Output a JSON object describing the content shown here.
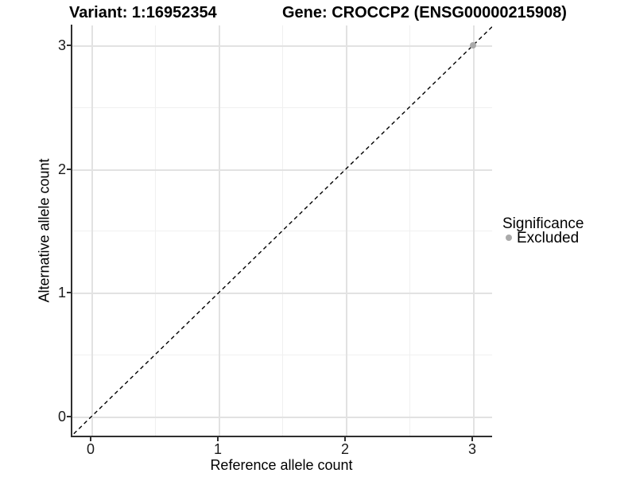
{
  "titles": {
    "variant": "Variant: 1:16952354",
    "gene": "Gene: CROCCP2 (ENSG00000215908)"
  },
  "chart_data": {
    "type": "scatter",
    "title": "Variant: 1:16952354 — Gene: CROCCP2 (ENSG00000215908)",
    "xlabel": "Reference allele count",
    "ylabel": "Alternative allele count",
    "xlim": [
      -0.16,
      3.16
    ],
    "ylim": [
      -0.16,
      3.16
    ],
    "x_ticks": [
      0,
      1,
      2,
      3
    ],
    "y_ticks": [
      0,
      1,
      2,
      3
    ],
    "x_tick_labels": [
      "0",
      "1",
      "2",
      "3"
    ],
    "y_tick_labels": [
      "0",
      "1",
      "2",
      "3"
    ],
    "grid": "major gridlines at integers, minor at halves, light gray on white",
    "series": [
      {
        "name": "Excluded",
        "points": [
          [
            3,
            3
          ]
        ],
        "color": "#aaaaaa"
      }
    ],
    "reference_line": {
      "type": "identity y=x",
      "style": "dashed",
      "color": "#000000"
    },
    "legend": {
      "position": "right",
      "title": "Significance",
      "items": [
        {
          "label": "Excluded",
          "color": "#aaaaaa",
          "marker": "circle"
        }
      ]
    },
    "colors": {
      "point": "#aaaaaa",
      "grid_major": "#e2e2e2",
      "grid_minor": "#f0f0f0",
      "axis": "#2f2f2f",
      "text": "#000000"
    }
  }
}
